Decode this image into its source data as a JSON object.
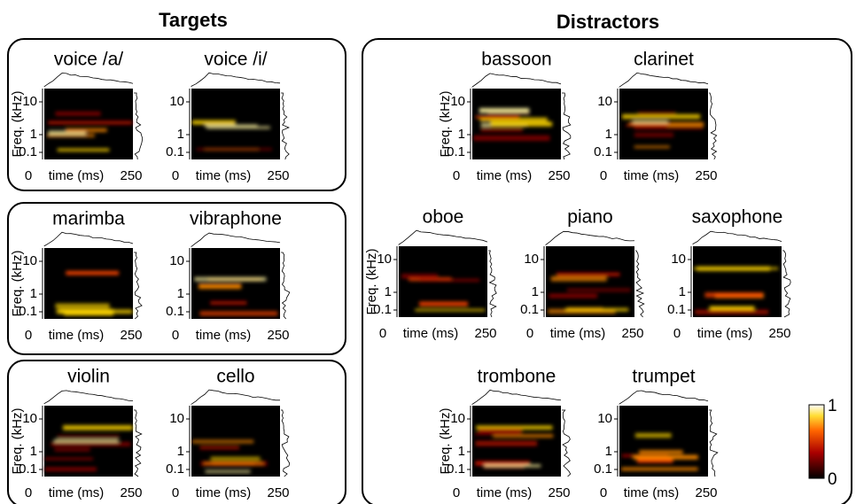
{
  "groups": [
    {
      "title": "Targets",
      "boxes": [
        {
          "panels": [
            {
              "title": "voice /a/"
            },
            {
              "title": "voice /i/"
            }
          ]
        },
        {
          "panels": [
            {
              "title": "marimba"
            },
            {
              "title": "vibraphone"
            }
          ]
        },
        {
          "panels": [
            {
              "title": "violin"
            },
            {
              "title": "cello"
            }
          ]
        }
      ]
    },
    {
      "title": "Distractors",
      "boxes": [
        {
          "panels": [
            {
              "title": "bassoon"
            },
            {
              "title": "clarinet"
            },
            {
              "title": "oboe"
            },
            {
              "title": "piano"
            },
            {
              "title": "saxophone"
            },
            {
              "title": "trombone"
            },
            {
              "title": "trumpet"
            }
          ]
        }
      ]
    }
  ],
  "axes": {
    "y_label": "Freq. (kHz)",
    "x_label": "time (ms)",
    "yticks": [
      "10",
      "1",
      "0.1"
    ],
    "xticks": [
      "0",
      "250"
    ]
  },
  "colorbar": {
    "ticks": [
      "1",
      "0"
    ]
  }
}
